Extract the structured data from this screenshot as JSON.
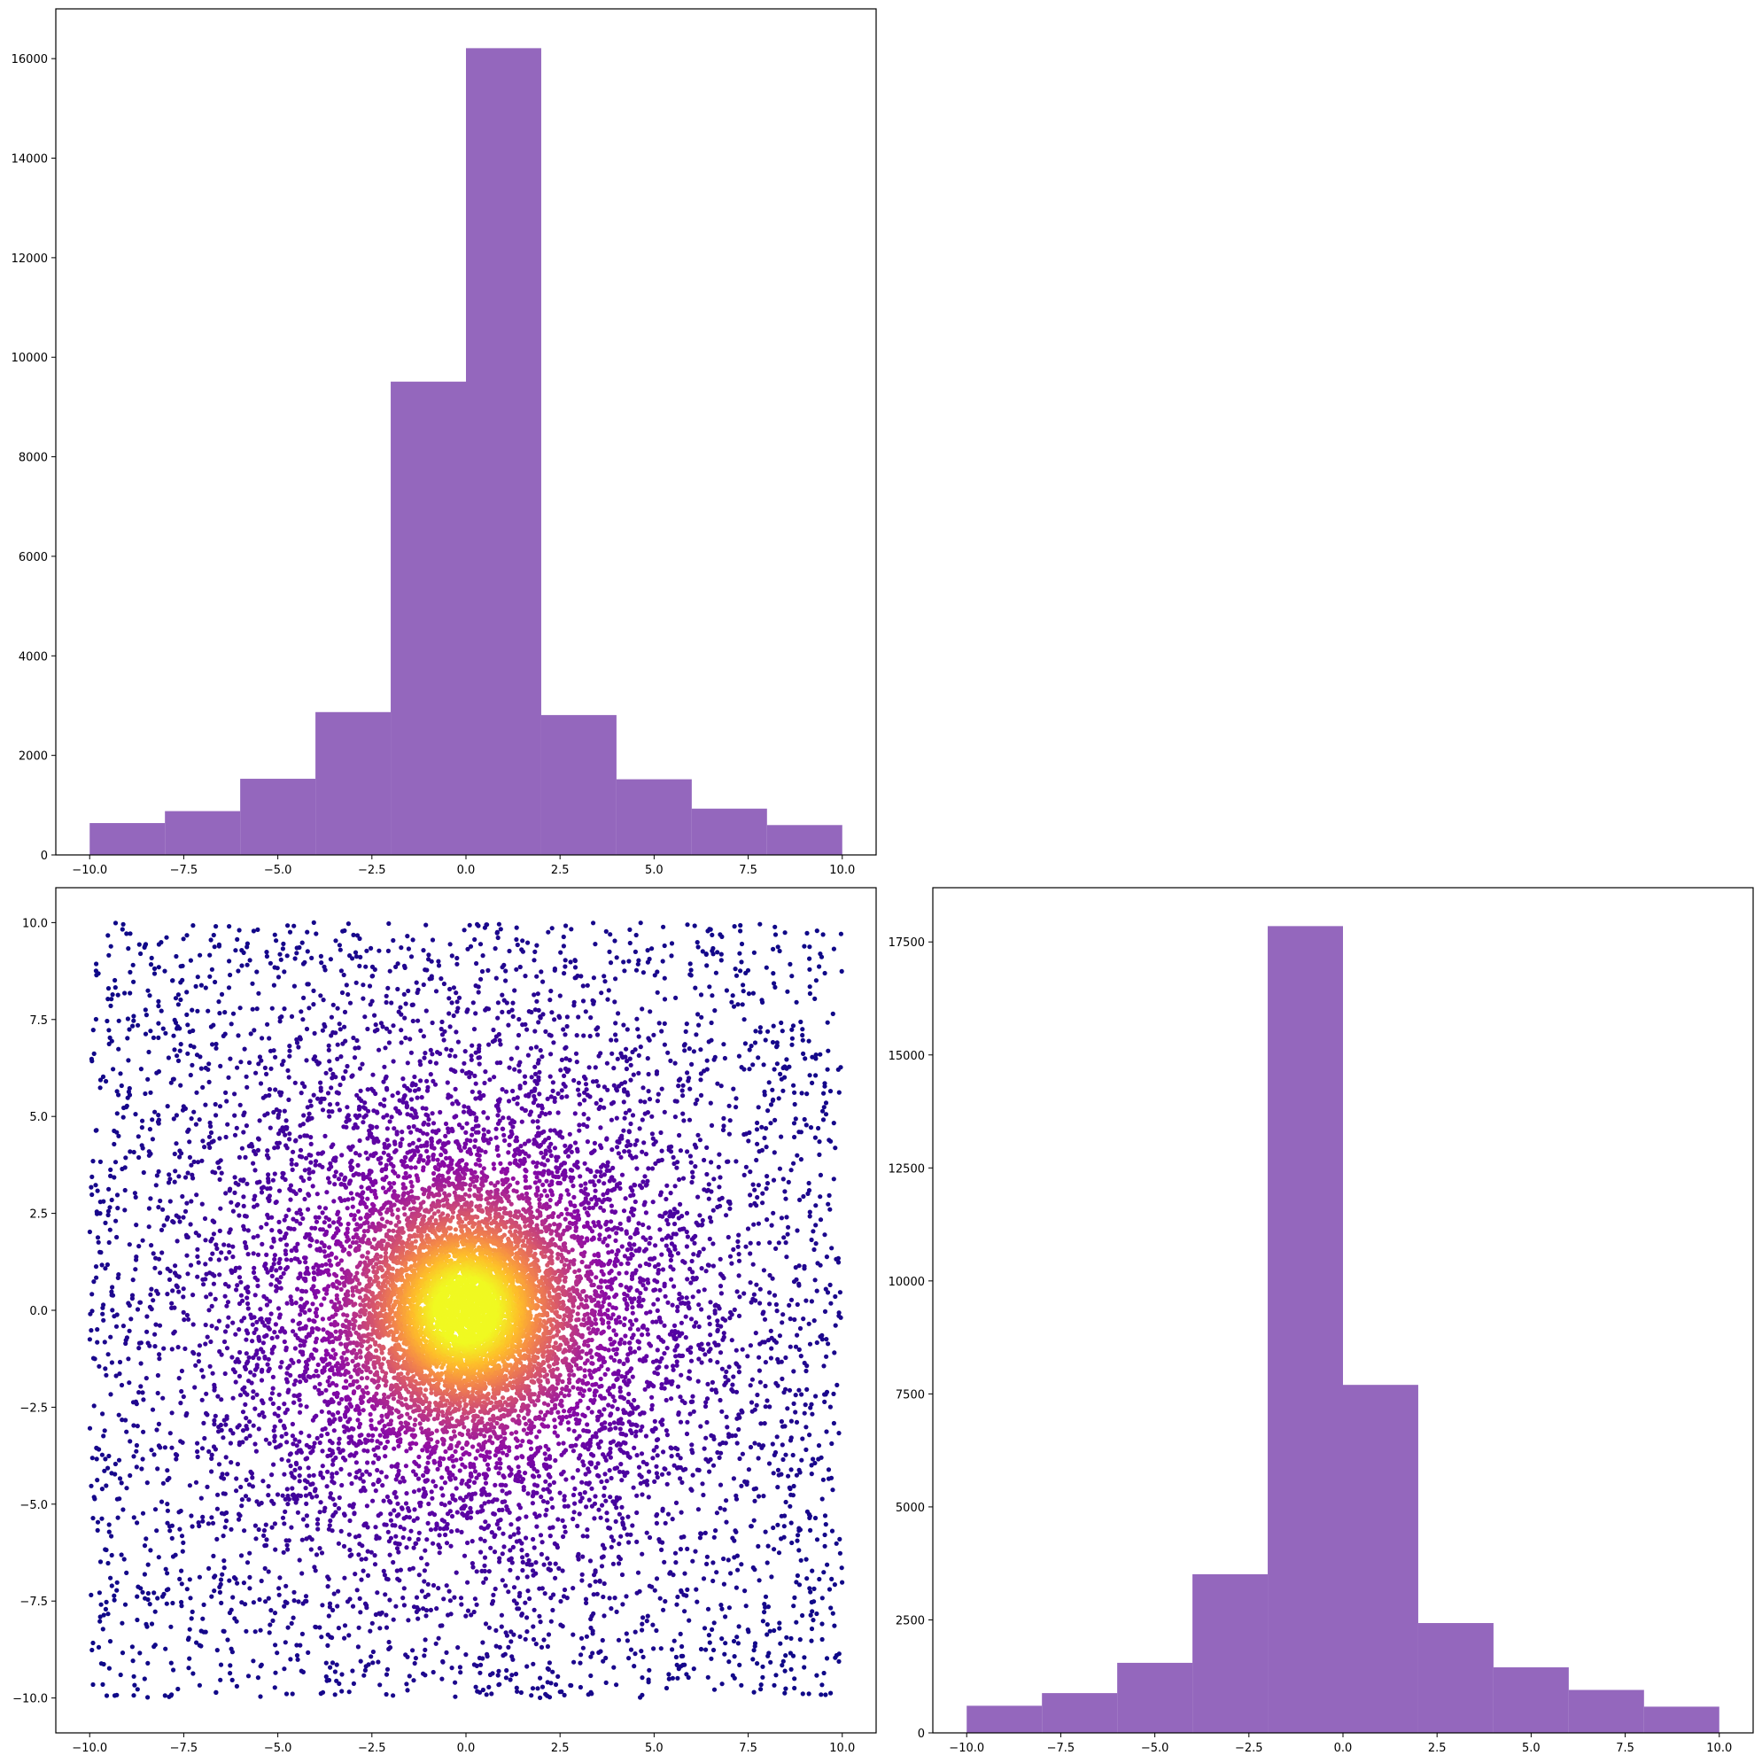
{
  "chart_data": [
    {
      "type": "bar",
      "subtype": "histogram",
      "color": "#9467bd",
      "bin_edges": [
        -10,
        -8,
        -6,
        -4,
        -2,
        0,
        2,
        4,
        6,
        8,
        10
      ],
      "values": [
        640,
        880,
        1530,
        2870,
        9510,
        16210,
        2810,
        1520,
        930,
        600
      ],
      "xlim": [
        -10.9,
        10.9
      ],
      "ylim": [
        0,
        17000
      ],
      "xticks": [
        -10.0,
        -7.5,
        -5.0,
        -2.5,
        0.0,
        2.5,
        5.0,
        7.5,
        10.0
      ],
      "xtick_labels": [
        "−10.0",
        "−7.5",
        "−5.0",
        "−2.5",
        "0.0",
        "2.5",
        "5.0",
        "7.5",
        "10.0"
      ],
      "yticks": [
        0,
        2000,
        4000,
        6000,
        8000,
        10000,
        12000,
        14000,
        16000
      ],
      "ytick_labels": [
        "0",
        "2000",
        "4000",
        "6000",
        "8000",
        "10000",
        "12000",
        "14000",
        "16000"
      ],
      "title": "",
      "xlabel": "",
      "ylabel": "",
      "grid": false
    },
    {
      "type": "scatter",
      "colormap": "plasma",
      "colormap_stops": [
        "#0d0887",
        "#5302a3",
        "#8b0aa5",
        "#b83289",
        "#db5c68",
        "#f48849",
        "#febd2a",
        "#f0f921"
      ],
      "description": "uniform random points in [-10,10]x[-10,10] plus a dense concentration near the origin, colored by density (dark purple sparse, yellow dense)",
      "x_range": [
        -10,
        10
      ],
      "y_range": [
        -10,
        10
      ],
      "xlim": [
        -10.9,
        10.9
      ],
      "ylim": [
        -10.9,
        10.9
      ],
      "xticks": [
        -10.0,
        -7.5,
        -5.0,
        -2.5,
        0.0,
        2.5,
        5.0,
        7.5,
        10.0
      ],
      "xtick_labels": [
        "−10.0",
        "−7.5",
        "−5.0",
        "−2.5",
        "0.0",
        "2.5",
        "5.0",
        "7.5",
        "10.0"
      ],
      "yticks": [
        -10.0,
        -7.5,
        -5.0,
        -2.5,
        0.0,
        2.5,
        5.0,
        7.5,
        10.0
      ],
      "ytick_labels": [
        "−10.0",
        "−7.5",
        "−5.0",
        "−2.5",
        "0.0",
        "2.5",
        "5.0",
        "7.5",
        "10.0"
      ],
      "title": "",
      "xlabel": "",
      "ylabel": "",
      "grid": false
    },
    {
      "type": "bar",
      "subtype": "histogram",
      "color": "#9467bd",
      "bin_edges": [
        -10,
        -8,
        -6,
        -4,
        -2,
        0,
        2,
        4,
        6,
        8,
        10
      ],
      "values": [
        600,
        880,
        1550,
        3510,
        17850,
        7700,
        2430,
        1450,
        950,
        580
      ],
      "xlim": [
        -10.9,
        10.9
      ],
      "ylim": [
        0,
        18700
      ],
      "xticks": [
        -10.0,
        -7.5,
        -5.0,
        -2.5,
        0.0,
        2.5,
        5.0,
        7.5,
        10.0
      ],
      "xtick_labels": [
        "−10.0",
        "−7.5",
        "−5.0",
        "−2.5",
        "0.0",
        "2.5",
        "5.0",
        "7.5",
        "10.0"
      ],
      "yticks": [
        0,
        2500,
        5000,
        7500,
        10000,
        12500,
        15000,
        17500
      ],
      "ytick_labels": [
        "0",
        "2500",
        "5000",
        "7500",
        "10000",
        "12500",
        "15000",
        "17500"
      ],
      "title": "",
      "xlabel": "",
      "ylabel": "",
      "grid": false
    }
  ]
}
